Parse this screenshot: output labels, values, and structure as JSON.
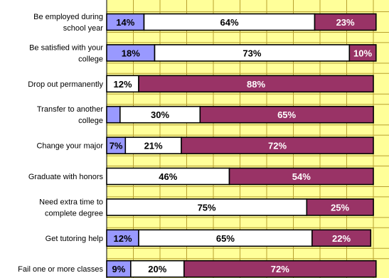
{
  "chart_data": {
    "type": "bar",
    "orientation": "horizontal",
    "stacked": true,
    "title": "",
    "xlabel": "",
    "ylabel": "",
    "xlim": [
      0,
      100
    ],
    "grid": true,
    "legend": "none",
    "categories": [
      "Be employed during school year",
      "Be satisfied with your college",
      "Drop out permanently",
      "Transfer to another college",
      "Change your major",
      "Graduate with honors",
      "Need extra time to complete degree",
      "Get tutoring help",
      "Fail one or more classes"
    ],
    "category_lines": [
      [
        "Be employed during",
        "school year"
      ],
      [
        "Be satisfied with your",
        "college"
      ],
      [
        "Drop out permanently"
      ],
      [
        "Transfer to another",
        "college"
      ],
      [
        "Change your major"
      ],
      [
        "Graduate with honors"
      ],
      [
        "Need extra time to",
        "complete degree"
      ],
      [
        "Get tutoring help"
      ],
      [
        "Fail one or more classes"
      ]
    ],
    "series": [
      {
        "values": [
          14,
          18,
          0,
          5,
          7,
          0,
          0,
          12,
          9
        ],
        "labels": [
          "14%",
          "18%",
          "",
          "",
          "7%",
          "",
          "",
          "12%",
          "9%"
        ]
      },
      {
        "values": [
          64,
          73,
          12,
          30,
          21,
          46,
          75,
          65,
          20
        ],
        "labels": [
          "64%",
          "73%",
          "12%",
          "30%",
          "21%",
          "46%",
          "75%",
          "65%",
          "20%"
        ]
      },
      {
        "values": [
          23,
          10,
          88,
          65,
          72,
          54,
          25,
          22,
          72
        ],
        "labels": [
          "23%",
          "10%",
          "88%",
          "65%",
          "72%",
          "54%",
          "25%",
          "22%",
          "72%"
        ]
      }
    ],
    "colors": {
      "plot_background": "#ffff99",
      "gridline": "#b8a030",
      "border": "#000000",
      "series": [
        "#9999ff",
        "#ffffff",
        "#993366"
      ],
      "series_text": [
        "#000000",
        "#000000",
        "#ffffff"
      ]
    }
  }
}
